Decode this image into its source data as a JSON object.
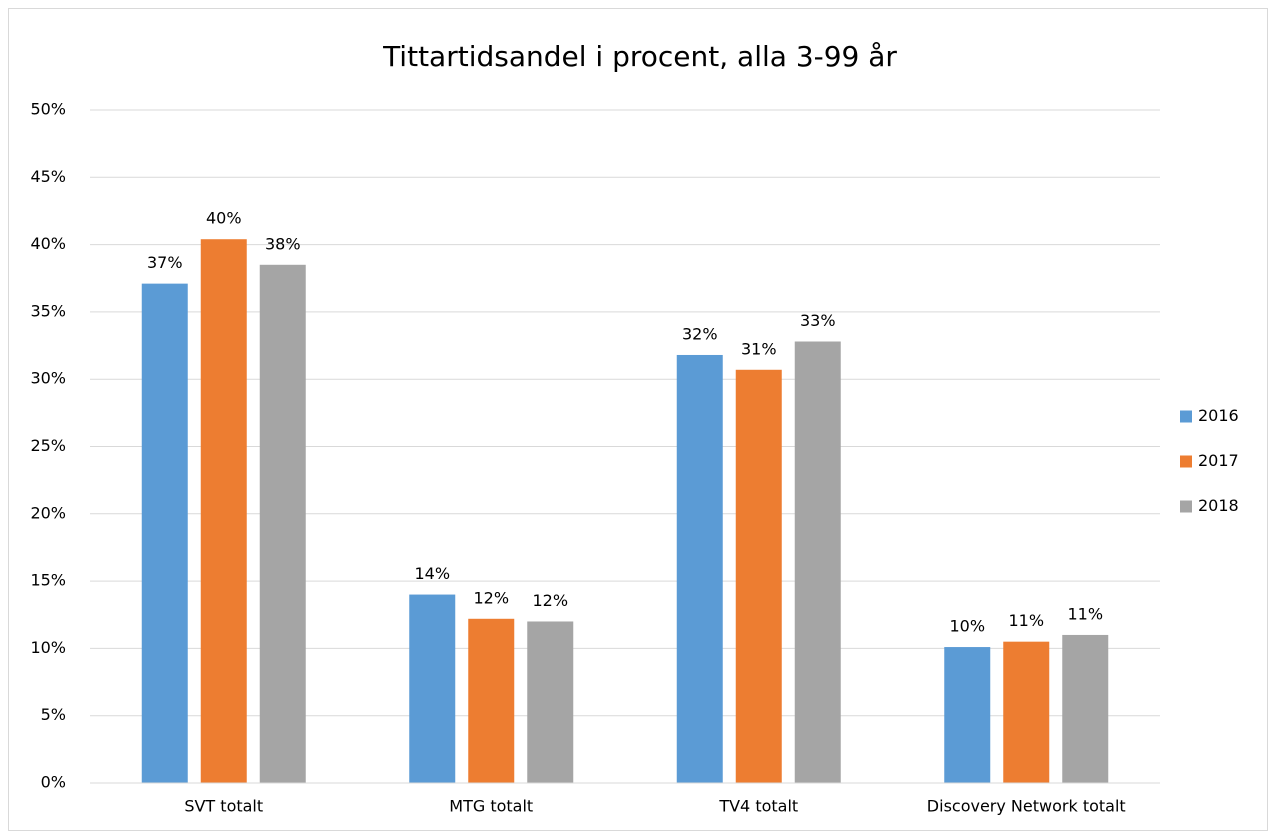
{
  "chart_data": {
    "type": "bar",
    "title": "Tittartidsandel i procent, alla 3-99 år",
    "categories": [
      "SVT totalt",
      "MTG totalt",
      "TV4 totalt",
      "Discovery Network totalt"
    ],
    "series": [
      {
        "name": "2016",
        "color": "#5b9bd5",
        "values": [
          37.1,
          14.0,
          31.8,
          10.1
        ],
        "value_labels": [
          "37%",
          "14%",
          "32%",
          "10%"
        ]
      },
      {
        "name": "2017",
        "color": "#ed7d31",
        "values": [
          40.4,
          12.2,
          30.7,
          10.5
        ],
        "value_labels": [
          "40%",
          "12%",
          "31%",
          "11%"
        ]
      },
      {
        "name": "2018",
        "color": "#a5a5a5",
        "values": [
          38.5,
          12.0,
          32.8,
          11.0
        ],
        "value_labels": [
          "38%",
          "12%",
          "33%",
          "11%"
        ]
      }
    ],
    "ylim": [
      0,
      50
    ],
    "yticks": [
      {
        "value": 0,
        "label": "0%"
      },
      {
        "value": 5,
        "label": "5%"
      },
      {
        "value": 10,
        "label": "10%"
      },
      {
        "value": 15,
        "label": "15%"
      },
      {
        "value": 20,
        "label": "20%"
      },
      {
        "value": 25,
        "label": "25%"
      },
      {
        "value": 30,
        "label": "30%"
      },
      {
        "value": 35,
        "label": "35%"
      },
      {
        "value": 40,
        "label": "40%"
      },
      {
        "value": 45,
        "label": "45%"
      },
      {
        "value": 50,
        "label": "50%"
      }
    ],
    "grid": true,
    "legend": "right"
  }
}
